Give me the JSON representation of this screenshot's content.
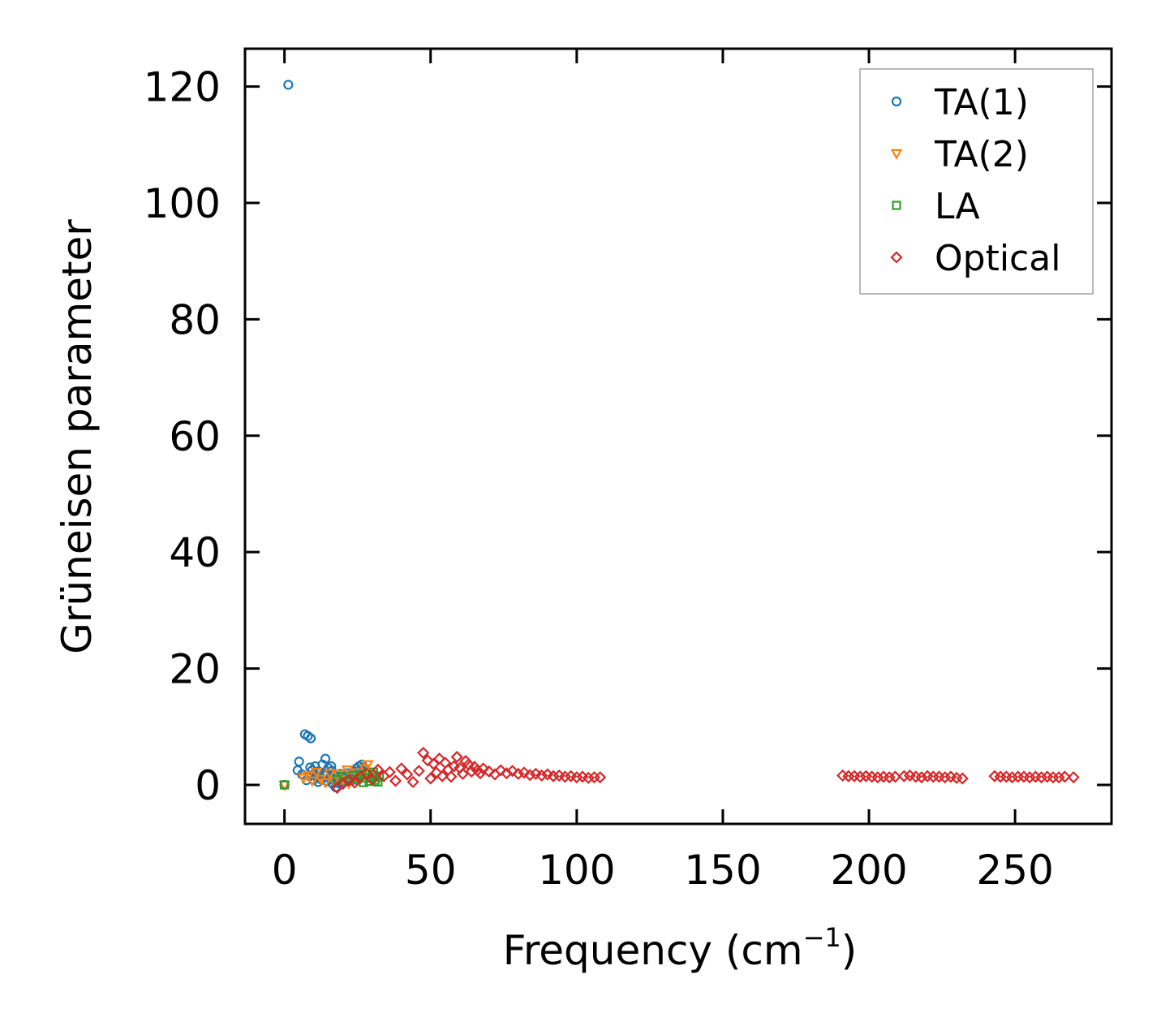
{
  "chart_data": {
    "type": "scatter",
    "title": "",
    "xlabel": "Frequency (cm",
    "xlabel_sup": "−1",
    "xlabel_close": ")",
    "ylabel": "Grüneisen parameter",
    "xlim": [
      -13.5,
      283
    ],
    "ylim": [
      -6.7,
      126.5
    ],
    "xticks": [
      0,
      50,
      100,
      150,
      200,
      250
    ],
    "yticks": [
      0,
      20,
      40,
      60,
      80,
      100,
      120
    ],
    "grid": false,
    "legend_position": "top-right",
    "series": [
      {
        "name": "TA(1)",
        "marker": "circle",
        "color": "#1f77b4",
        "points": [
          [
            0,
            0
          ],
          [
            1.3,
            120.3
          ],
          [
            4.5,
            2.5
          ],
          [
            5,
            4
          ],
          [
            6,
            1.8
          ],
          [
            7,
            8.7
          ],
          [
            8,
            8.4
          ],
          [
            9,
            8.0
          ],
          [
            7.5,
            0.8
          ],
          [
            8.5,
            1.5
          ],
          [
            9.5,
            2.5
          ],
          [
            10,
            0.9
          ],
          [
            10.5,
            3.2
          ],
          [
            11,
            1.4
          ],
          [
            11.5,
            0.5
          ],
          [
            12,
            2.1
          ],
          [
            12.5,
            1.1
          ],
          [
            13,
            3.5
          ],
          [
            13.5,
            1.7
          ],
          [
            14,
            4.5
          ],
          [
            14.5,
            0.6
          ],
          [
            15,
            2.9
          ],
          [
            15.5,
            1.3
          ],
          [
            16,
            3.2
          ],
          [
            16.5,
            0.2
          ],
          [
            17,
            1.8
          ],
          [
            17.5,
            -0.4
          ],
          [
            18,
            1.1
          ],
          [
            18.5,
            0.3
          ],
          [
            19,
            1.6
          ],
          [
            19.5,
            0.4
          ],
          [
            20,
            0.9
          ],
          [
            20.5,
            1.4
          ],
          [
            21,
            0.6
          ],
          [
            21.5,
            2.0
          ],
          [
            22,
            1.0
          ],
          [
            22.5,
            1.7
          ],
          [
            23,
            0.8
          ],
          [
            23.5,
            2.3
          ],
          [
            24,
            1.3
          ],
          [
            24.5,
            2.8
          ],
          [
            25,
            1.9
          ],
          [
            25.5,
            3.2
          ],
          [
            26,
            2.6
          ],
          [
            26.5,
            3.5
          ],
          [
            27,
            3.0
          ],
          [
            11.5,
            2.3
          ],
          [
            13.8,
            2.0
          ],
          [
            16.2,
            2.4
          ],
          [
            19.2,
            1.9
          ],
          [
            12.7,
            0.9
          ],
          [
            15.8,
            1.0
          ],
          [
            18.8,
            0.6
          ],
          [
            21.8,
            1.2
          ],
          [
            24.2,
            0.9
          ],
          [
            10.2,
            1.8
          ],
          [
            8.8,
            3.0
          ]
        ]
      },
      {
        "name": "TA(2)",
        "marker": "triangle-down",
        "color": "#ff7f0e",
        "points": [
          [
            0,
            0
          ],
          [
            6.5,
            1.2
          ],
          [
            8,
            1.6
          ],
          [
            9.5,
            0.7
          ],
          [
            11,
            2.2
          ],
          [
            12.5,
            1.0
          ],
          [
            14,
            0.4
          ],
          [
            15.5,
            2.0
          ],
          [
            17,
            0.6
          ],
          [
            18.5,
            1.8
          ],
          [
            20,
            0.9
          ],
          [
            21.5,
            2.6
          ],
          [
            23,
            1.4
          ],
          [
            24.5,
            2.1
          ],
          [
            26,
            1.2
          ],
          [
            27.5,
            2.8
          ],
          [
            28.5,
            3.5
          ],
          [
            29,
            1.9
          ],
          [
            22,
            0.3
          ],
          [
            25,
            0.8
          ]
        ]
      },
      {
        "name": "LA",
        "marker": "square",
        "color": "#2ca02c",
        "points": [
          [
            0,
            0
          ],
          [
            18,
            0.9
          ],
          [
            20,
            1.4
          ],
          [
            22,
            0.7
          ],
          [
            23.5,
            1.6
          ],
          [
            25,
            1.0
          ],
          [
            26.5,
            1.8
          ],
          [
            28,
            1.2
          ],
          [
            29,
            0.6
          ],
          [
            30,
            1.7
          ],
          [
            31,
            0.8
          ],
          [
            31.5,
            1.3
          ],
          [
            32,
            0.5
          ],
          [
            32.5,
            1.5
          ],
          [
            27,
            0.4
          ],
          [
            30.5,
            2.2
          ]
        ]
      },
      {
        "name": "Optical",
        "marker": "diamond",
        "color": "#d62728",
        "points": [
          [
            18,
            -0.5
          ],
          [
            20,
            0.2
          ],
          [
            22,
            0.8
          ],
          [
            24,
            0.4
          ],
          [
            26,
            1.4
          ],
          [
            28,
            2.0
          ],
          [
            30,
            0.9
          ],
          [
            32,
            2.6
          ],
          [
            34,
            1.5
          ],
          [
            36,
            2.2
          ],
          [
            38,
            0.7
          ],
          [
            40,
            2.8
          ],
          [
            42,
            1.8
          ],
          [
            44,
            0.5
          ],
          [
            46,
            2.4
          ],
          [
            47.5,
            5.5
          ],
          [
            49,
            4.2
          ],
          [
            50,
            1.1
          ],
          [
            51,
            3.6
          ],
          [
            52,
            2.1
          ],
          [
            53,
            4.5
          ],
          [
            54,
            1.5
          ],
          [
            55,
            3.8
          ],
          [
            56,
            2.6
          ],
          [
            57,
            1.4
          ],
          [
            58,
            3.2
          ],
          [
            59,
            4.8
          ],
          [
            60,
            2.9
          ],
          [
            61,
            1.9
          ],
          [
            62,
            4.1
          ],
          [
            63,
            3.5
          ],
          [
            64,
            2.3
          ],
          [
            65,
            3.1
          ],
          [
            66,
            2.5
          ],
          [
            67,
            2.0
          ],
          [
            68,
            2.8
          ],
          [
            70,
            2.3
          ],
          [
            72,
            1.8
          ],
          [
            74,
            2.5
          ],
          [
            76,
            2.0
          ],
          [
            78,
            2.4
          ],
          [
            80,
            1.9
          ],
          [
            82,
            2.1
          ],
          [
            84,
            1.7
          ],
          [
            86,
            1.9
          ],
          [
            88,
            1.6
          ],
          [
            90,
            1.8
          ],
          [
            92,
            1.5
          ],
          [
            94,
            1.6
          ],
          [
            96,
            1.4
          ],
          [
            98,
            1.5
          ],
          [
            100,
            1.3
          ],
          [
            102,
            1.4
          ],
          [
            104,
            1.2
          ],
          [
            106,
            1.3
          ],
          [
            108,
            1.3
          ],
          [
            191,
            1.6
          ],
          [
            193,
            1.5
          ],
          [
            195,
            1.5
          ],
          [
            197,
            1.4
          ],
          [
            199,
            1.5
          ],
          [
            201,
            1.4
          ],
          [
            203,
            1.3
          ],
          [
            205,
            1.4
          ],
          [
            207,
            1.3
          ],
          [
            209,
            1.4
          ],
          [
            212,
            1.5
          ],
          [
            214,
            1.6
          ],
          [
            216,
            1.4
          ],
          [
            218,
            1.3
          ],
          [
            220,
            1.5
          ],
          [
            222,
            1.4
          ],
          [
            224,
            1.4
          ],
          [
            226,
            1.3
          ],
          [
            228,
            1.4
          ],
          [
            230,
            1.2
          ],
          [
            232,
            1.1
          ],
          [
            243,
            1.5
          ],
          [
            245,
            1.4
          ],
          [
            247,
            1.4
          ],
          [
            249,
            1.3
          ],
          [
            251,
            1.4
          ],
          [
            253,
            1.4
          ],
          [
            255,
            1.3
          ],
          [
            257,
            1.4
          ],
          [
            259,
            1.3
          ],
          [
            261,
            1.4
          ],
          [
            263,
            1.3
          ],
          [
            265,
            1.3
          ],
          [
            267,
            1.4
          ],
          [
            270,
            1.3
          ]
        ]
      }
    ]
  }
}
